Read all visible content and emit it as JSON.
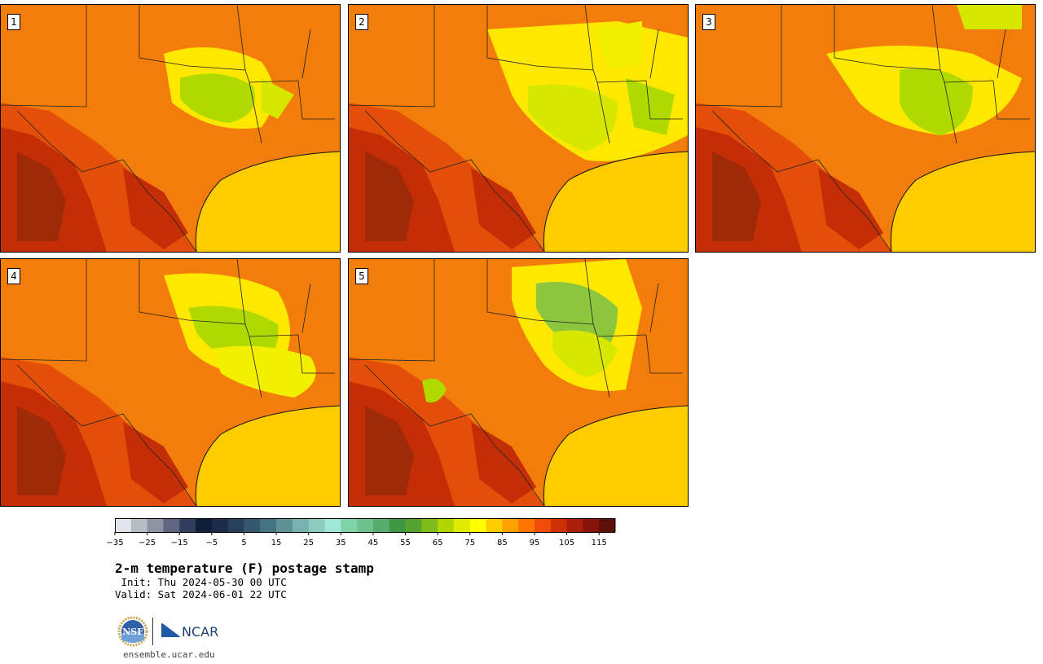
{
  "panels": [
    {
      "label": "1",
      "variant": 1
    },
    {
      "label": "2",
      "variant": 2
    },
    {
      "label": "3",
      "variant": 3
    },
    {
      "label": "4",
      "variant": 4
    },
    {
      "label": "5",
      "variant": 5
    }
  ],
  "colorbar": {
    "min": -35,
    "max": 120,
    "step": 5,
    "tick_labels": [
      "−35",
      "−25",
      "−15",
      "−5",
      "5",
      "15",
      "25",
      "35",
      "45",
      "55",
      "65",
      "75",
      "85",
      "95",
      "105",
      "115"
    ],
    "colors": [
      "#e1e4ea",
      "#b8bcc6",
      "#8e93a3",
      "#5f6680",
      "#333d5c",
      "#121d38",
      "#1b2b48",
      "#263f5a",
      "#34586c",
      "#477482",
      "#5f9296",
      "#78b1ae",
      "#8dcac2",
      "#9ee6d6",
      "#80d3a8",
      "#6cc18d",
      "#56ad6f",
      "#3f9644",
      "#56a332",
      "#80bb1c",
      "#b3d600",
      "#e0eb00",
      "#ffff00",
      "#ffcc00",
      "#ffa200",
      "#ff7500",
      "#f04c0a",
      "#cf3006",
      "#a81f0a",
      "#86140a",
      "#5c1009"
    ]
  },
  "title": "2-m temperature (F) postage stamp",
  "init": " Init: Thu 2024-05-30 00 UTC",
  "valid": "Valid: Sat 2024-06-01 22 UTC",
  "logos": {
    "nsf": "NSF",
    "ncar": "NCAR"
  },
  "url": "ensemble.ucar.edu"
}
